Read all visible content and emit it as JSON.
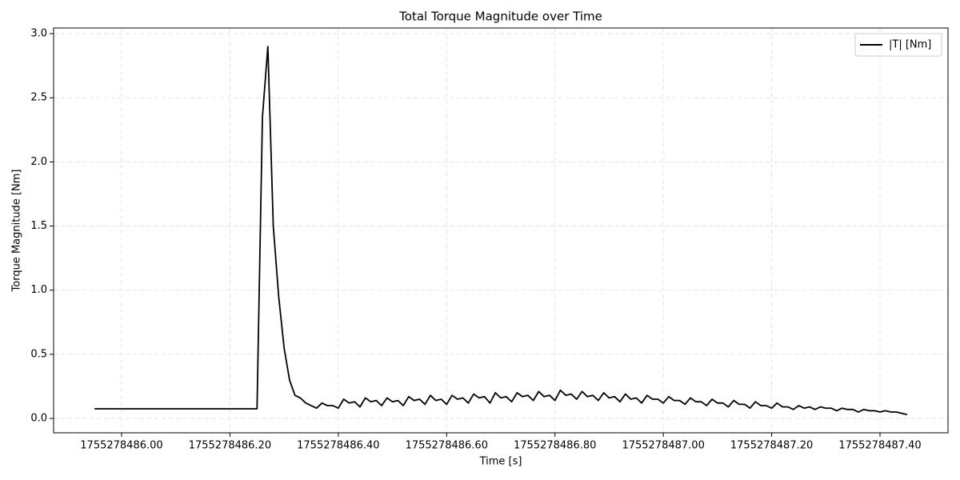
{
  "chart_data": {
    "type": "line",
    "title": "Total Torque Magnitude over Time",
    "xlabel": "Time [s]",
    "ylabel": "Torque Magnitude [Nm]",
    "x": [
      1755278485.95,
      1755278486.25,
      1755278486.26,
      1755278486.27,
      1755278486.28,
      1755278486.29,
      1755278486.3,
      1755278486.31,
      1755278486.32,
      1755278486.33,
      1755278486.34,
      1755278486.35,
      1755278486.36,
      1755278486.37,
      1755278486.38,
      1755278486.39,
      1755278486.4,
      1755278486.41,
      1755278486.42,
      1755278486.43,
      1755278486.44,
      1755278486.45,
      1755278486.46,
      1755278486.47,
      1755278486.48,
      1755278486.49,
      1755278486.5,
      1755278486.51,
      1755278486.52,
      1755278486.53,
      1755278486.54,
      1755278486.55,
      1755278486.56,
      1755278486.57,
      1755278486.58,
      1755278486.59,
      1755278486.6,
      1755278486.61,
      1755278486.62,
      1755278486.63,
      1755278486.64,
      1755278486.65,
      1755278486.66,
      1755278486.67,
      1755278486.68,
      1755278486.69,
      1755278486.7,
      1755278486.71,
      1755278486.72,
      1755278486.73,
      1755278486.74,
      1755278486.75,
      1755278486.76,
      1755278486.77,
      1755278486.78,
      1755278486.79,
      1755278486.8,
      1755278486.81,
      1755278486.82,
      1755278486.83,
      1755278486.84,
      1755278486.85,
      1755278486.86,
      1755278486.87,
      1755278486.88,
      1755278486.89,
      1755278486.9,
      1755278486.91,
      1755278486.92,
      1755278486.93,
      1755278486.94,
      1755278486.95,
      1755278486.96,
      1755278486.97,
      1755278486.98,
      1755278486.99,
      1755278487.0,
      1755278487.01,
      1755278487.02,
      1755278487.03,
      1755278487.04,
      1755278487.05,
      1755278487.06,
      1755278487.07,
      1755278487.08,
      1755278487.09,
      1755278487.1,
      1755278487.11,
      1755278487.12,
      1755278487.13,
      1755278487.14,
      1755278487.15,
      1755278487.16,
      1755278487.17,
      1755278487.18,
      1755278487.19,
      1755278487.2,
      1755278487.21,
      1755278487.22,
      1755278487.23,
      1755278487.24,
      1755278487.25,
      1755278487.26,
      1755278487.27,
      1755278487.28,
      1755278487.29,
      1755278487.3,
      1755278487.31,
      1755278487.32,
      1755278487.33,
      1755278487.34,
      1755278487.35,
      1755278487.36,
      1755278487.37,
      1755278487.38,
      1755278487.39,
      1755278487.4,
      1755278487.41,
      1755278487.42,
      1755278487.43,
      1755278487.44,
      1755278487.45
    ],
    "series": [
      {
        "name": "|T| [Nm]",
        "color": "#000000",
        "values": [
          0.075,
          0.075,
          2.35,
          2.9,
          1.5,
          0.95,
          0.55,
          0.3,
          0.18,
          0.16,
          0.12,
          0.1,
          0.08,
          0.12,
          0.1,
          0.1,
          0.08,
          0.15,
          0.12,
          0.13,
          0.09,
          0.16,
          0.13,
          0.14,
          0.1,
          0.16,
          0.13,
          0.14,
          0.1,
          0.17,
          0.14,
          0.15,
          0.11,
          0.18,
          0.14,
          0.15,
          0.11,
          0.18,
          0.15,
          0.16,
          0.12,
          0.19,
          0.16,
          0.17,
          0.12,
          0.2,
          0.16,
          0.17,
          0.13,
          0.2,
          0.17,
          0.18,
          0.14,
          0.21,
          0.17,
          0.18,
          0.14,
          0.22,
          0.18,
          0.19,
          0.15,
          0.21,
          0.17,
          0.18,
          0.14,
          0.2,
          0.16,
          0.17,
          0.13,
          0.19,
          0.15,
          0.16,
          0.12,
          0.18,
          0.15,
          0.15,
          0.12,
          0.17,
          0.14,
          0.14,
          0.11,
          0.16,
          0.13,
          0.13,
          0.1,
          0.15,
          0.12,
          0.12,
          0.09,
          0.14,
          0.11,
          0.11,
          0.08,
          0.13,
          0.1,
          0.1,
          0.08,
          0.12,
          0.09,
          0.09,
          0.07,
          0.1,
          0.08,
          0.09,
          0.07,
          0.09,
          0.08,
          0.08,
          0.06,
          0.08,
          0.07,
          0.07,
          0.05,
          0.07,
          0.06,
          0.06,
          0.05,
          0.06,
          0.05,
          0.05,
          0.04,
          0.03
        ]
      }
    ],
    "xlim": [
      1755278485.8745,
      1755278487.5255
    ],
    "ylim": [
      -0.112,
      3.044
    ],
    "xticks": [
      {
        "value": 1755278486.0,
        "label": "1755278486.00"
      },
      {
        "value": 1755278486.2,
        "label": "1755278486.20"
      },
      {
        "value": 1755278486.4,
        "label": "1755278486.40"
      },
      {
        "value": 1755278486.6,
        "label": "1755278486.60"
      },
      {
        "value": 1755278486.8,
        "label": "1755278486.80"
      },
      {
        "value": 1755278487.0,
        "label": "1755278487.00"
      },
      {
        "value": 1755278487.2,
        "label": "1755278487.20"
      },
      {
        "value": 1755278487.4,
        "label": "1755278487.40"
      }
    ],
    "yticks": [
      {
        "value": 0,
        "label": "0.0"
      },
      {
        "value": 0.5,
        "label": "0.5"
      },
      {
        "value": 1,
        "label": "1.0"
      },
      {
        "value": 1.5,
        "label": "1.5"
      },
      {
        "value": 2,
        "label": "2.0"
      },
      {
        "value": 2.5,
        "label": "2.5"
      },
      {
        "value": 3,
        "label": "3.0"
      }
    ],
    "grid": true,
    "legend": "upper right"
  }
}
